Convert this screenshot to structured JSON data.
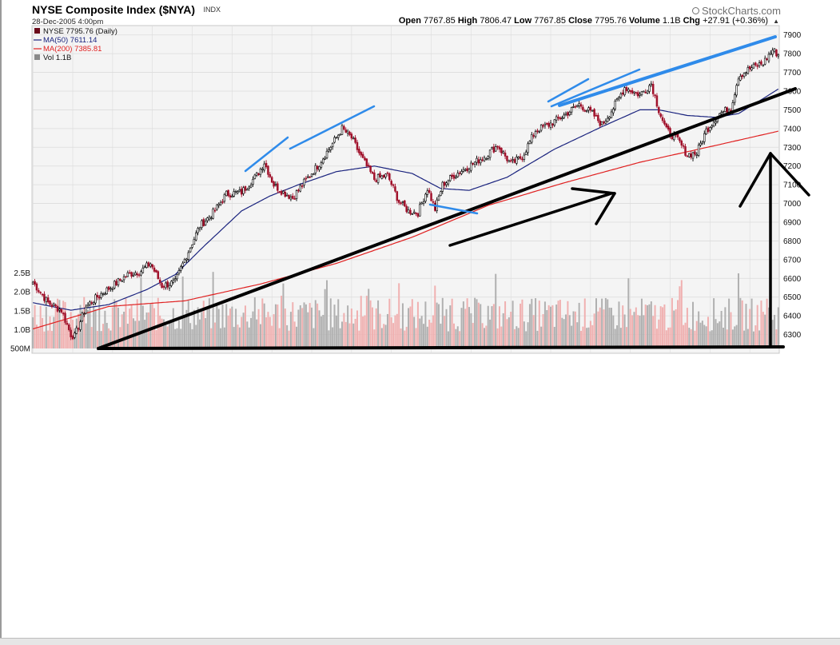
{
  "header": {
    "title": "NYSE Composite Index ($NYA)",
    "exchange": "INDX",
    "date": "28-Dec-2005 4:00pm",
    "brand": "StockCharts.com",
    "brand_icon": "globe-icon",
    "open_label": "Open",
    "open": "7767.85",
    "high_label": "High",
    "high": "7806.47",
    "low_label": "Low",
    "low": "7767.85",
    "close_label": "Close",
    "close": "7795.76",
    "volume_label": "Volume",
    "volume": "1.1B",
    "chg_label": "Chg",
    "chg": "+27.91 (+0.36%)",
    "chg_icon": "triangle-up-icon"
  },
  "legend": {
    "price": "NYSE 7795.76 (Daily)",
    "ma50": "MA(50) 7611.14",
    "ma200": "MA(200) 7385.81",
    "vol": "Vol 1.1B"
  },
  "colors": {
    "background": "#ffffff",
    "plot_bg": "#f4f4f4",
    "grid": "#dcdcdc",
    "candle_down": "#a0102a",
    "candle_up": "#000000",
    "ma50": "#1a237e",
    "ma200": "#e02020",
    "vol_up": "#b0b0b0",
    "vol_down": "#f0b0b0",
    "annotation_black": "#000000",
    "annotation_blue": "#2f8bea"
  },
  "chart_data": {
    "type": "candlestick",
    "title": "NYSE Composite Index ($NYA)",
    "period": "Daily",
    "y_ticks": [
      6300,
      6400,
      6500,
      6600,
      6700,
      6800,
      6900,
      7000,
      7100,
      7200,
      7300,
      7400,
      7500,
      7600,
      7700,
      7800,
      7900
    ],
    "ylim": [
      6200,
      7950
    ],
    "volume_ticks": [
      "500M",
      "1.0B",
      "1.5B",
      "2.0B",
      "2.5B"
    ],
    "volume_tick_values": [
      0.5,
      1.0,
      1.5,
      2.0,
      2.5
    ],
    "volume_ylim": [
      0.5,
      3.0
    ],
    "grid": true,
    "legend_position": "top-left",
    "price_anchors": [
      [
        0,
        6580
      ],
      [
        8,
        6470
      ],
      [
        15,
        6430
      ],
      [
        20,
        6300
      ],
      [
        22,
        6290
      ],
      [
        28,
        6450
      ],
      [
        35,
        6510
      ],
      [
        42,
        6560
      ],
      [
        50,
        6620
      ],
      [
        57,
        6640
      ],
      [
        62,
        6680
      ],
      [
        68,
        6560
      ],
      [
        75,
        6580
      ],
      [
        80,
        6700
      ],
      [
        88,
        6880
      ],
      [
        95,
        6950
      ],
      [
        102,
        7050
      ],
      [
        110,
        7060
      ],
      [
        118,
        7150
      ],
      [
        122,
        7220
      ],
      [
        127,
        7100
      ],
      [
        132,
        7060
      ],
      [
        137,
        7030
      ],
      [
        142,
        7100
      ],
      [
        150,
        7200
      ],
      [
        158,
        7320
      ],
      [
        163,
        7400
      ],
      [
        168,
        7350
      ],
      [
        173,
        7250
      ],
      [
        180,
        7130
      ],
      [
        187,
        7150
      ],
      [
        193,
        7010
      ],
      [
        198,
        6960
      ],
      [
        203,
        6950
      ],
      [
        208,
        7080
      ],
      [
        212,
        6970
      ],
      [
        216,
        7100
      ],
      [
        222,
        7150
      ],
      [
        230,
        7200
      ],
      [
        238,
        7250
      ],
      [
        245,
        7310
      ],
      [
        252,
        7210
      ],
      [
        258,
        7250
      ],
      [
        265,
        7390
      ],
      [
        272,
        7420
      ],
      [
        280,
        7470
      ],
      [
        288,
        7530
      ],
      [
        295,
        7480
      ],
      [
        300,
        7420
      ],
      [
        306,
        7510
      ],
      [
        312,
        7620
      ],
      [
        320,
        7580
      ],
      [
        326,
        7640
      ],
      [
        330,
        7500
      ],
      [
        334,
        7390
      ],
      [
        340,
        7340
      ],
      [
        345,
        7260
      ],
      [
        350,
        7270
      ],
      [
        355,
        7390
      ],
      [
        362,
        7480
      ],
      [
        368,
        7510
      ],
      [
        372,
        7680
      ],
      [
        378,
        7720
      ],
      [
        385,
        7750
      ],
      [
        390,
        7820
      ],
      [
        393,
        7795
      ]
    ],
    "ma50_anchors": [
      [
        0,
        6470
      ],
      [
        20,
        6430
      ],
      [
        40,
        6460
      ],
      [
        60,
        6540
      ],
      [
        75,
        6620
      ],
      [
        90,
        6770
      ],
      [
        110,
        6960
      ],
      [
        125,
        7040
      ],
      [
        140,
        7100
      ],
      [
        160,
        7170
      ],
      [
        180,
        7200
      ],
      [
        200,
        7160
      ],
      [
        215,
        7080
      ],
      [
        230,
        7070
      ],
      [
        250,
        7140
      ],
      [
        275,
        7290
      ],
      [
        300,
        7410
      ],
      [
        320,
        7500
      ],
      [
        330,
        7500
      ],
      [
        345,
        7470
      ],
      [
        360,
        7460
      ],
      [
        372,
        7480
      ],
      [
        385,
        7560
      ],
      [
        393,
        7611
      ]
    ],
    "ma200_anchors": [
      [
        0,
        6330
      ],
      [
        40,
        6450
      ],
      [
        80,
        6480
      ],
      [
        120,
        6570
      ],
      [
        160,
        6680
      ],
      [
        200,
        6820
      ],
      [
        240,
        6990
      ],
      [
        280,
        7110
      ],
      [
        320,
        7220
      ],
      [
        360,
        7310
      ],
      [
        393,
        7386
      ]
    ],
    "n_days": 394
  }
}
